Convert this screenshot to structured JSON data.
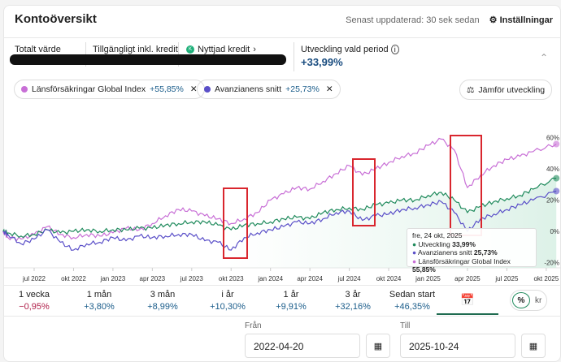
{
  "header": {
    "title": "Kontoöversikt",
    "updated": "Senast uppdaterad: 30 sek sedan",
    "settings": "Inställningar"
  },
  "summary": {
    "total_label": "Totalt värde",
    "available_label": "Tillgängligt inkl. kredit",
    "credit_label": "Nyttjad kredit",
    "credit_badge": "K",
    "development_label": "Utveckling vald period",
    "development_value": "+33,99%"
  },
  "chips": [
    {
      "name": "Länsförsäkringar Global Index",
      "value": "+55,85%",
      "color": "#c86fd6"
    },
    {
      "name": "Avanzianens snitt",
      "value": "+25,73%",
      "color": "#5a4fc8"
    }
  ],
  "compare_label": "Jämför utveckling",
  "chart_data": {
    "type": "line",
    "x_ticks": [
      "jul 2022",
      "okt 2022",
      "jan 2023",
      "apr 2023",
      "jul 2023",
      "okt 2023",
      "jan 2024",
      "apr 2024",
      "jul 2024",
      "okt 2024",
      "jan 2025",
      "apr 2025",
      "jul 2025",
      "okt 2025"
    ],
    "y_ticks": [
      "60%",
      "40%",
      "20%",
      "0%",
      "-20%"
    ],
    "ylim": [
      -20,
      60
    ],
    "unit": "%",
    "x": [
      "2022-04-20",
      "2022-05",
      "2022-06",
      "2022-07",
      "2022-08",
      "2022-09",
      "2022-10",
      "2022-11",
      "2022-12",
      "2023-01",
      "2023-02",
      "2023-03",
      "2023-04",
      "2023-05",
      "2023-06",
      "2023-07",
      "2023-08",
      "2023-09",
      "2023-10",
      "2023-11",
      "2023-12",
      "2024-01",
      "2024-02",
      "2024-03",
      "2024-04",
      "2024-05",
      "2024-06",
      "2024-07",
      "2024-08",
      "2024-09",
      "2024-10",
      "2024-11",
      "2024-12",
      "2025-01",
      "2025-02",
      "2025-03",
      "2025-04",
      "2025-05",
      "2025-06",
      "2025-07",
      "2025-08",
      "2025-09",
      "2025-10-24"
    ],
    "series": [
      {
        "name": "Utveckling",
        "color": "#1f8a5c",
        "values": [
          0,
          -1,
          -3,
          -2,
          1,
          -1,
          0,
          1,
          0,
          1,
          1,
          2,
          2,
          4,
          5,
          6,
          6,
          4,
          1,
          4,
          5,
          6,
          8,
          9,
          8,
          12,
          14,
          15,
          14,
          17,
          18,
          20,
          20,
          23,
          25,
          20,
          12,
          16,
          19,
          21,
          23,
          27,
          33.99
        ]
      },
      {
        "name": "Avanzianens snitt",
        "color": "#5a4fc8",
        "values": [
          0,
          -2,
          -8,
          -5,
          1,
          -7,
          -12,
          -8,
          -7,
          -4,
          -6,
          -3,
          -4,
          -3,
          -2,
          -2,
          -6,
          -7,
          -12,
          -4,
          -1,
          1,
          3,
          6,
          5,
          8,
          12,
          13,
          7,
          10,
          11,
          14,
          15,
          17,
          19,
          12,
          0,
          8,
          11,
          14,
          17,
          20,
          25.73
        ]
      },
      {
        "name": "Länsförsäkringar Global Index",
        "color": "#c86fd6",
        "values": [
          0,
          -4,
          -5,
          -2,
          3,
          -2,
          -4,
          -2,
          -3,
          -1,
          2,
          1,
          5,
          10,
          14,
          13,
          10,
          8,
          5,
          8,
          12,
          20,
          24,
          28,
          27,
          32,
          37,
          42,
          36,
          40,
          44,
          48,
          50,
          55,
          59,
          52,
          28,
          36,
          42,
          46,
          48,
          51,
          55.85
        ]
      }
    ],
    "tooltip": {
      "date": "fre, 24 okt, 2025",
      "rows": [
        {
          "label": "Utveckling",
          "value": "33,99%"
        },
        {
          "label": "Avanzianens snitt",
          "value": "25,73%"
        },
        {
          "label": "Länsförsäkringar Global Index",
          "value": "55,85%"
        }
      ]
    }
  },
  "periods": [
    {
      "label": "1 vecka",
      "value": "−0,95%",
      "neg": true
    },
    {
      "label": "1 mån",
      "value": "+3,80%"
    },
    {
      "label": "3 mån",
      "value": "+8,99%"
    },
    {
      "label": "i år",
      "value": "+10,30%"
    },
    {
      "label": "1 år",
      "value": "+9,91%"
    },
    {
      "label": "3 år",
      "value": "+32,16%"
    },
    {
      "label": "Sedan start",
      "value": "+46,35%"
    }
  ],
  "toggle": {
    "pct": "%",
    "kr": "kr"
  },
  "dates": {
    "from_label": "Från",
    "from": "2022-04-20",
    "to_label": "Till",
    "to": "2025-10-24"
  },
  "accent": "#1f8a5c"
}
